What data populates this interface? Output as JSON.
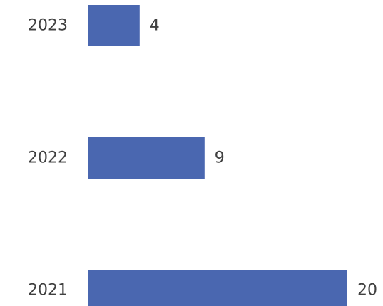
{
  "chart_data": {
    "type": "bar",
    "orientation": "horizontal",
    "categories": [
      "2023",
      "2022",
      "2021"
    ],
    "values": [
      4,
      9,
      20
    ],
    "xlim": [
      0,
      20
    ],
    "bar_color": "#4a67b0",
    "grid": false,
    "legend": "none"
  }
}
